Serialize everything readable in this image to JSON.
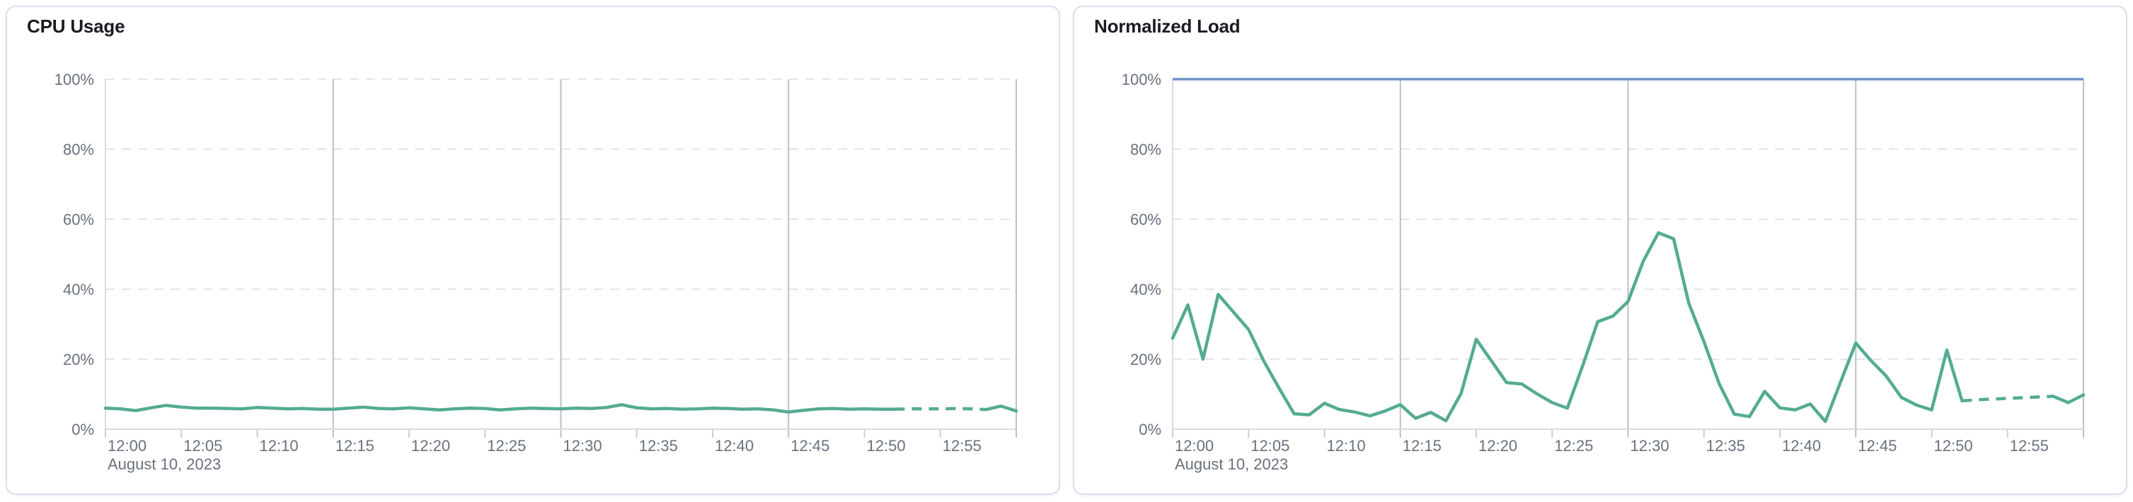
{
  "colors": {
    "line_green": "#54ab92",
    "threshold_blue": "#6d93c8",
    "grid_dashed": "#e2e5ee",
    "grid_major": "#bbbfc9",
    "axis_line": "#d8dbe3",
    "tick_minor": "#c9ced8",
    "tick_label": "#69707d",
    "title": "#1a1c21",
    "panel_border": "#d8dfec",
    "panel_bg": "#ffffff",
    "page_bg": "#ffffff"
  },
  "chart_data": [
    {
      "type": "line",
      "title": "CPU Usage",
      "date_label": "August 10, 2023",
      "x_unit": "minutes after 12:00",
      "x_domain_minutes": 60,
      "x_step_minutes": 1,
      "x_tick_minutes": [
        0,
        5,
        10,
        15,
        20,
        25,
        30,
        35,
        40,
        45,
        50,
        55
      ],
      "x_tick_labels": [
        "12:00",
        "12:05",
        "12:10",
        "12:15",
        "12:20",
        "12:25",
        "12:30",
        "12:35",
        "12:40",
        "12:45",
        "12:50",
        "12:55"
      ],
      "major_gridline_minutes": [
        15,
        30,
        45,
        60
      ],
      "ylim": [
        0,
        100
      ],
      "y_ticks": [
        0,
        20,
        40,
        60,
        80,
        100
      ],
      "y_tick_labels": [
        "0%",
        "20%",
        "40%",
        "60%",
        "80%",
        "100%"
      ],
      "grid": "dashed horizontal",
      "legend": "off",
      "series": [
        {
          "name": "cpu-usage-percent",
          "color": "#54ab92",
          "values": [
            6.0,
            5.8,
            5.3,
            6.1,
            6.8,
            6.3,
            6.0,
            6.0,
            5.9,
            5.8,
            6.2,
            6.0,
            5.8,
            5.9,
            5.7,
            5.7,
            6.0,
            6.3,
            5.9,
            5.8,
            6.1,
            5.8,
            5.5,
            5.8,
            6.0,
            5.9,
            5.5,
            5.8,
            6.0,
            5.9,
            5.8,
            6.0,
            5.9,
            6.2,
            7.0,
            6.1,
            5.8,
            5.9,
            5.7,
            5.8,
            6.0,
            5.9,
            5.7,
            5.8,
            5.5,
            4.9,
            5.4,
            5.8,
            5.9,
            5.7,
            5.8,
            5.7,
            5.7,
            5.8,
            5.8,
            5.8,
            5.9,
            5.8,
            5.6,
            6.6,
            5.2
          ],
          "segments": [
            {
              "from": 0,
              "to": 52,
              "style": "solid"
            },
            {
              "from": 52,
              "to": 58,
              "style": "dashed"
            },
            {
              "from": 58,
              "to": 60,
              "style": "solid"
            }
          ]
        }
      ]
    },
    {
      "type": "line",
      "title": "Normalized Load",
      "date_label": "August 10, 2023",
      "x_unit": "minutes after 12:00",
      "x_domain_minutes": 60,
      "x_step_minutes": 1,
      "x_tick_minutes": [
        0,
        5,
        10,
        15,
        20,
        25,
        30,
        35,
        40,
        45,
        50,
        55
      ],
      "x_tick_labels": [
        "12:00",
        "12:05",
        "12:10",
        "12:15",
        "12:20",
        "12:25",
        "12:30",
        "12:35",
        "12:40",
        "12:45",
        "12:50",
        "12:55"
      ],
      "major_gridline_minutes": [
        15,
        30,
        45,
        60
      ],
      "ylim": [
        0,
        100
      ],
      "y_ticks": [
        0,
        20,
        40,
        60,
        80,
        100
      ],
      "y_tick_labels": [
        "0%",
        "20%",
        "40%",
        "60%",
        "80%",
        "100%"
      ],
      "grid": "dashed horizontal",
      "legend": "off",
      "threshold": {
        "value": 100,
        "color": "#6d93c8"
      },
      "series": [
        {
          "name": "normalized-load-percent",
          "color": "#54ab92",
          "values": [
            26.0,
            35.5,
            20.0,
            38.5,
            33.5,
            28.5,
            19.5,
            11.8,
            4.4,
            4.1,
            7.4,
            5.6,
            4.9,
            3.8,
            5.2,
            7.0,
            3.1,
            4.8,
            2.4,
            10.2,
            25.7,
            19.5,
            13.3,
            12.9,
            10.1,
            7.6,
            6.0,
            18.0,
            30.7,
            32.3,
            36.5,
            48.0,
            56.1,
            54.4,
            36.0,
            25.0,
            13.0,
            4.3,
            3.6,
            10.8,
            6.1,
            5.5,
            7.2,
            2.2,
            13.5,
            24.6,
            19.6,
            15.2,
            9.1,
            6.9,
            5.5,
            22.6,
            8.1,
            8.4,
            8.6,
            8.8,
            9.0,
            9.2,
            9.4,
            7.6,
            9.8
          ],
          "segments": [
            {
              "from": 0,
              "to": 52,
              "style": "solid"
            },
            {
              "from": 52,
              "to": 58,
              "style": "dashed"
            },
            {
              "from": 58,
              "to": 60,
              "style": "solid"
            }
          ]
        }
      ]
    }
  ]
}
